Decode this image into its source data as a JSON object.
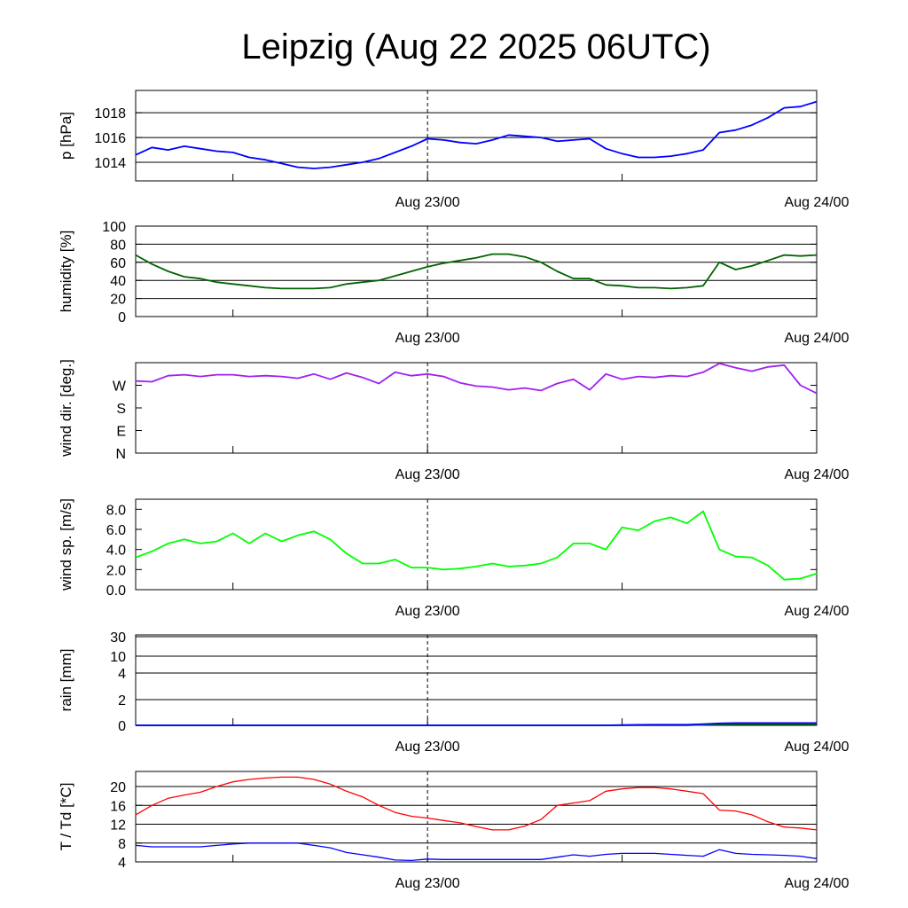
{
  "title": "Leipzig (Aug 22 2025 06UTC)",
  "chart_data": {
    "type": "line",
    "title": "Leipzig (Aug 22 2025 06UTC)",
    "x_unit": "hours since Aug 22 06UTC",
    "x": [
      0,
      1,
      2,
      3,
      4,
      5,
      6,
      7,
      8,
      9,
      10,
      11,
      12,
      13,
      14,
      15,
      16,
      17,
      18,
      19,
      20,
      21,
      22,
      23,
      24,
      25,
      26,
      27,
      28,
      29,
      30,
      31,
      32,
      33,
      34,
      35,
      36,
      37,
      38,
      39,
      40,
      41,
      42
    ],
    "xlim": [
      0,
      42
    ],
    "xticks": [
      {
        "hour": 6,
        "label": ""
      },
      {
        "hour": 18,
        "label": "Aug 23/00"
      },
      {
        "hour": 30,
        "label": ""
      },
      {
        "hour": 42,
        "label": "Aug 24/00"
      }
    ],
    "vline_hour": 18,
    "panels": [
      {
        "ylabel": "p [hPa]",
        "ylim": [
          1012.5,
          1019.8
        ],
        "grid": [
          1014,
          1016,
          1018
        ],
        "yticks": [
          {
            "v": 1014,
            "label": "1014"
          },
          {
            "v": 1016,
            "label": "1016"
          },
          {
            "v": 1018,
            "label": "1018"
          }
        ],
        "series": [
          {
            "name": "pressure",
            "color": "#0000ff",
            "values": [
              1014.6,
              1015.2,
              1015.0,
              1015.3,
              1015.1,
              1014.9,
              1014.8,
              1014.4,
              1014.2,
              1013.9,
              1013.6,
              1013.5,
              1013.6,
              1013.8,
              1014.0,
              1014.3,
              1014.8,
              1015.3,
              1015.9,
              1015.8,
              1015.6,
              1015.5,
              1015.8,
              1016.2,
              1016.1,
              1016.0,
              1015.7,
              1015.8,
              1015.9,
              1015.1,
              1014.7,
              1014.4,
              1014.4,
              1014.5,
              1014.7,
              1015.0,
              1016.4,
              1016.6,
              1017.0,
              1017.6,
              1018.4,
              1018.5,
              1018.9
            ]
          }
        ]
      },
      {
        "ylabel": "humidity [%]",
        "ylim": [
          0,
          100
        ],
        "grid": [
          20,
          40,
          60,
          80
        ],
        "yticks": [
          {
            "v": 0,
            "label": "0"
          },
          {
            "v": 20,
            "label": "20"
          },
          {
            "v": 40,
            "label": "40"
          },
          {
            "v": 60,
            "label": "60"
          },
          {
            "v": 80,
            "label": "80"
          },
          {
            "v": 100,
            "label": "100"
          }
        ],
        "series": [
          {
            "name": "humidity",
            "color": "#006400",
            "values": [
              68,
              58,
              50,
              44,
              42,
              38,
              36,
              34,
              32,
              31,
              31,
              31,
              32,
              36,
              38,
              40,
              45,
              50,
              55,
              59,
              62,
              65,
              69,
              69,
              66,
              60,
              50,
              42,
              42,
              35,
              34,
              32,
              32,
              31,
              32,
              34,
              60,
              52,
              56,
              62,
              68,
              67,
              68
            ]
          }
        ]
      },
      {
        "ylabel": "wind dir. [deg.]",
        "ylim": [
          0,
          360
        ],
        "grid": [],
        "yticks": [
          {
            "v": 0,
            "label": "N"
          },
          {
            "v": 90,
            "label": "E"
          },
          {
            "v": 180,
            "label": "S"
          },
          {
            "v": 270,
            "label": "W"
          }
        ],
        "series": [
          {
            "name": "wind direction",
            "color": "#a020f0",
            "values": [
              287,
              284,
              308,
              312,
              305,
              312,
              312,
              305,
              308,
              305,
              298,
              315,
              294,
              319,
              301,
              277,
              322,
              308,
              315,
              305,
              280,
              267,
              263,
              252,
              259,
              249,
              277,
              294,
              252,
              315,
              294,
              305,
              301,
              308,
              305,
              322,
              357,
              340,
              326,
              343,
              350,
              270,
              238
            ]
          }
        ]
      },
      {
        "ylabel": "wind sp. [m/s]",
        "ylim": [
          0,
          9.0
        ],
        "grid": [],
        "yticks": [
          {
            "v": 0,
            "label": "0.0"
          },
          {
            "v": 2,
            "label": "2.0"
          },
          {
            "v": 4,
            "label": "4.0"
          },
          {
            "v": 6,
            "label": "6.0"
          },
          {
            "v": 8,
            "label": "8.0"
          }
        ],
        "series": [
          {
            "name": "wind speed",
            "color": "#00ff00",
            "values": [
              3.2,
              3.8,
              4.6,
              5.0,
              4.6,
              4.8,
              5.6,
              4.6,
              5.6,
              4.8,
              5.4,
              5.8,
              5.0,
              3.6,
              2.6,
              2.6,
              3.0,
              2.2,
              2.2,
              2.0,
              2.1,
              2.3,
              2.6,
              2.3,
              2.4,
              2.6,
              3.2,
              4.6,
              4.6,
              4.0,
              6.2,
              5.9,
              6.8,
              7.2,
              6.6,
              7.8,
              4.0,
              3.3,
              3.2,
              2.4,
              1.0,
              1.1,
              1.6
            ]
          }
        ]
      },
      {
        "ylabel": "rain [mm]",
        "ylim": [
          0,
          40
        ],
        "scale": "nonlinear",
        "grid": [
          2,
          4,
          10,
          30
        ],
        "yticks": [
          {
            "v": 0,
            "label": "0"
          },
          {
            "v": 2,
            "label": "2"
          },
          {
            "v": 4,
            "label": "4"
          },
          {
            "v": 10,
            "label": "10"
          },
          {
            "v": 30,
            "label": "30"
          }
        ],
        "series": [
          {
            "name": "rain (green)",
            "color": "#008000",
            "values": [
              0,
              0,
              0,
              0,
              0,
              0,
              0,
              0,
              0,
              0,
              0,
              0,
              0,
              0,
              0,
              0,
              0,
              0,
              0,
              0,
              0,
              0,
              0,
              0,
              0,
              0,
              0,
              0,
              0,
              0,
              0,
              0,
              0,
              0,
              0,
              0.05,
              0.08,
              0.1,
              0.1,
              0.1,
              0.1,
              0.1,
              0.1
            ]
          },
          {
            "name": "rain (blue)",
            "color": "#0000ff",
            "values": [
              0,
              0,
              0,
              0,
              0,
              0,
              0,
              0,
              0,
              0,
              0,
              0,
              0,
              0,
              0,
              0,
              0,
              0,
              0,
              0,
              0,
              0,
              0,
              0,
              0,
              0,
              0,
              0,
              0,
              0,
              0.02,
              0.04,
              0.05,
              0.05,
              0.05,
              0.1,
              0.15,
              0.18,
              0.18,
              0.18,
              0.18,
              0.18,
              0.18
            ]
          }
        ]
      },
      {
        "ylabel": "T / Td [*C]",
        "ylim": [
          4,
          23.2
        ],
        "grid": [
          8,
          12,
          16,
          20
        ],
        "yticks": [
          {
            "v": 4,
            "label": "4"
          },
          {
            "v": 8,
            "label": "8"
          },
          {
            "v": 12,
            "label": "12"
          },
          {
            "v": 16,
            "label": "16"
          },
          {
            "v": 20,
            "label": "20"
          }
        ],
        "series": [
          {
            "name": "temperature",
            "color": "#ff0000",
            "values": [
              14,
              16,
              17.5,
              18.2,
              18.8,
              20,
              21,
              21.5,
              21.8,
              22,
              22,
              21.5,
              20.5,
              19,
              17.8,
              16,
              14.5,
              13.7,
              13.3,
              12.8,
              12.3,
              11.5,
              10.8,
              10.8,
              11.6,
              13,
              16,
              16.5,
              17,
              19,
              19.5,
              19.8,
              19.8,
              19.5,
              19,
              18.5,
              15,
              14.8,
              14,
              12.5,
              11.4,
              11.2,
              10.8
            ]
          },
          {
            "name": "dew point",
            "color": "#0000ff",
            "values": [
              7.5,
              7.2,
              7.2,
              7.2,
              7.2,
              7.5,
              7.8,
              8,
              8,
              8,
              8,
              7.5,
              7,
              6,
              5.5,
              5,
              4.4,
              4.3,
              4.6,
              4.5,
              4.5,
              4.5,
              4.5,
              4.5,
              4.5,
              4.5,
              5,
              5.5,
              5.2,
              5.6,
              5.8,
              5.8,
              5.8,
              5.6,
              5.4,
              5.2,
              6.6,
              5.8,
              5.6,
              5.5,
              5.4,
              5.2,
              4.7
            ]
          }
        ]
      }
    ]
  }
}
